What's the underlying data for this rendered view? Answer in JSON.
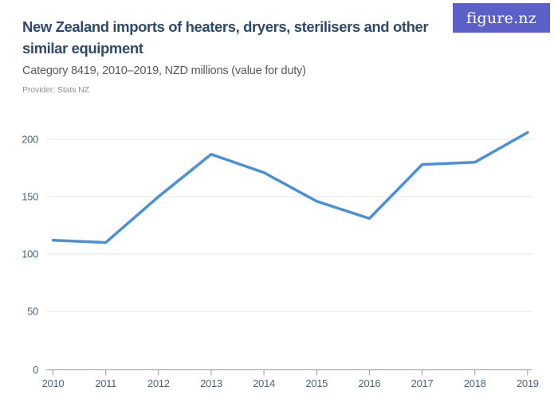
{
  "header": {
    "title": "New Zealand imports of heaters, dryers, sterilisers and other similar equipment",
    "subtitle": "Category 8419, 2010–2019, NZD millions (value for duty)",
    "provider": "Provider: Stats NZ"
  },
  "logo": {
    "text": "figure.nz"
  },
  "colors": {
    "brand": "#5b5fc7",
    "logo_text": "#ffffff",
    "line": "#4a90d8",
    "title_text": "#2e4a6b",
    "subtitle_text": "#595959",
    "provider_text": "#8f8f8f",
    "axis_label": "#4a6584",
    "gridline": "#e4e4e4",
    "axis_line": "#999999",
    "background": "#ffffff"
  },
  "chart_data": {
    "type": "line",
    "categories": [
      "2010",
      "2011",
      "2012",
      "2013",
      "2014",
      "2015",
      "2016",
      "2017",
      "2018",
      "2019"
    ],
    "values": [
      112,
      110,
      150,
      187,
      171,
      146,
      131,
      178,
      180,
      206
    ],
    "title": "New Zealand imports of heaters, dryers, sterilisers and other similar equipment",
    "xlabel": "",
    "ylabel": "",
    "ylim": [
      0,
      215
    ],
    "y_ticks": [
      0,
      50,
      100,
      150,
      200
    ],
    "grid": true,
    "legend": "none"
  }
}
